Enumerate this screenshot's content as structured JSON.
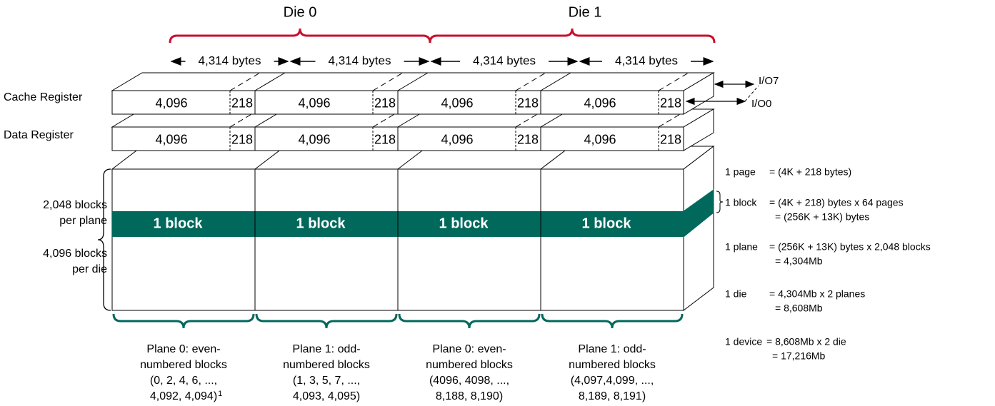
{
  "dies": [
    "Die 0",
    "Die 1"
  ],
  "byte_widths": [
    "4,314 bytes",
    "4,314 bytes",
    "4,314 bytes",
    "4,314 bytes"
  ],
  "registers": [
    {
      "label": "Cache Register",
      "cells": [
        {
          "main": "4,096",
          "spare": "218"
        },
        {
          "main": "4,096",
          "spare": "218"
        },
        {
          "main": "4,096",
          "spare": "218"
        },
        {
          "main": "4,096",
          "spare": "218"
        }
      ]
    },
    {
      "label": "Data Register",
      "cells": [
        {
          "main": "4,096",
          "spare": "218"
        },
        {
          "main": "4,096",
          "spare": "218"
        },
        {
          "main": "4,096",
          "spare": "218"
        },
        {
          "main": "4,096",
          "spare": "218"
        }
      ]
    }
  ],
  "io": [
    "I/O7",
    "I/O0"
  ],
  "array": {
    "per_plane": [
      "2,048 blocks",
      "per plane"
    ],
    "per_die": [
      "4,096 blocks",
      "per die"
    ],
    "blocks": [
      "1 block",
      "1 block",
      "1 block",
      "1 block"
    ]
  },
  "planes": [
    {
      "lines": [
        "Plane 0: even-",
        "numbered blocks",
        "(0, 2, 4, 6, ...,",
        "4,092, 4,094)"
      ],
      "footnote": "1"
    },
    {
      "lines": [
        "Plane 1: odd-",
        "numbered blocks",
        "(1, 3, 5, 7, ...,",
        "4,093, 4,095)"
      ]
    },
    {
      "lines": [
        "Plane 0: even-",
        "numbered blocks",
        "(4096, 4098, ...,",
        "8,188, 8,190)"
      ]
    },
    {
      "lines": [
        "Plane 1: odd-",
        "numbered blocks",
        "(4,097,4,099, ...,",
        "8,189, 8,191)"
      ]
    }
  ],
  "equations": [
    {
      "term": "1 page",
      "lines": [
        "= (4K + 218 bytes)"
      ]
    },
    {
      "term": "1 block",
      "lines": [
        "= (4K + 218) bytes x 64 pages",
        "= (256K + 13K) bytes"
      ]
    },
    {
      "term": "1 plane",
      "lines": [
        "= (256K + 13K) bytes x 2,048 blocks",
        "= 4,304Mb"
      ]
    },
    {
      "term": "1 die",
      "lines": [
        "= 4,304Mb x 2 planes",
        "= 8,608Mb"
      ]
    },
    {
      "term": "1 device",
      "lines": [
        "= 8,608Mb x 2 die",
        "= 17,216Mb"
      ]
    }
  ]
}
